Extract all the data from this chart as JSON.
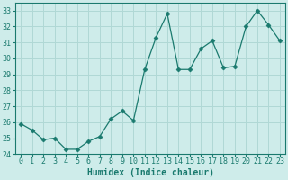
{
  "title": "",
  "xlabel": "Humidex (Indice chaleur)",
  "x": [
    0,
    1,
    2,
    3,
    4,
    5,
    6,
    7,
    8,
    9,
    10,
    11,
    12,
    13,
    14,
    15,
    16,
    17,
    18,
    19,
    20,
    21,
    22,
    23
  ],
  "y": [
    25.9,
    25.5,
    24.9,
    25.0,
    24.3,
    24.3,
    24.8,
    25.1,
    26.2,
    26.7,
    26.1,
    29.3,
    31.3,
    32.8,
    29.3,
    29.3,
    30.6,
    31.1,
    29.4,
    29.5,
    32.0,
    33.0,
    32.1,
    31.1
  ],
  "line_color": "#1a7a6e",
  "marker": "D",
  "marker_size": 2.5,
  "bg_color": "#ceecea",
  "grid_color": "#b0d8d5",
  "tick_color": "#1a7a6e",
  "label_color": "#1a7a6e",
  "ylim": [
    24,
    33.5
  ],
  "yticks": [
    24,
    25,
    26,
    27,
    28,
    29,
    30,
    31,
    32,
    33
  ],
  "title_fontsize": 7,
  "axis_fontsize": 7,
  "tick_fontsize": 6
}
